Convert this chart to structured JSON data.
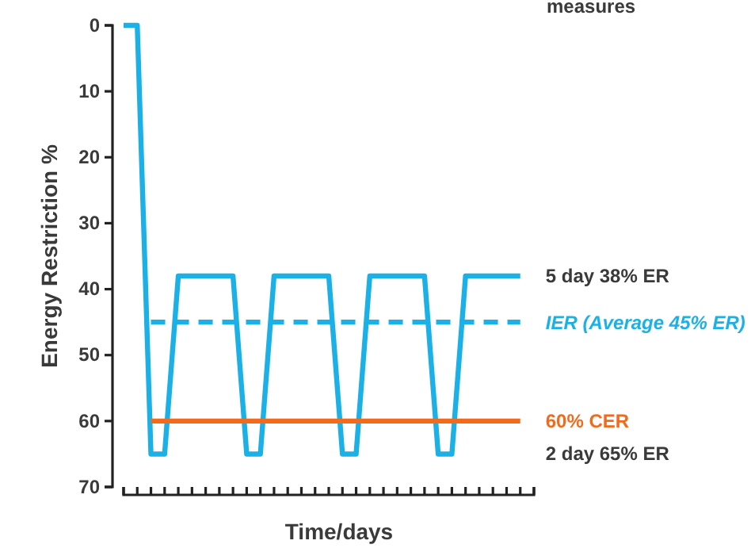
{
  "chart_data": {
    "type": "line",
    "title": "measures",
    "xlabel": "Time/days",
    "ylabel": "Energy Restriction %",
    "categories": [
      null,
      null,
      null,
      null,
      null,
      null,
      null,
      null,
      null,
      null,
      null,
      null,
      null,
      null,
      null,
      null,
      null,
      null,
      null,
      null,
      null,
      null,
      null,
      null,
      null,
      null,
      null,
      null,
      null,
      null,
      null
    ],
    "ylim": [
      70,
      0
    ],
    "yticks": [
      0,
      10,
      20,
      30,
      40,
      50,
      60,
      70
    ],
    "tick_labels": "y",
    "grid": false,
    "legend": false,
    "series": [
      {
        "color": "#1bb1e7",
        "line_style": "solid",
        "values": [
          0,
          0,
          65,
          65,
          38,
          38,
          38,
          38,
          38,
          65,
          65,
          38,
          38,
          38,
          38,
          38,
          65,
          65,
          38,
          38,
          38,
          38,
          38,
          65,
          65,
          38,
          38,
          38,
          38,
          38,
          null
        ]
      },
      {
        "name": "IER (Average 45% ER)",
        "color": "#1bb1e7",
        "line_style": "dashed",
        "values": [
          null,
          null,
          45,
          45,
          45,
          45,
          45,
          45,
          45,
          45,
          45,
          45,
          45,
          45,
          45,
          45,
          45,
          45,
          45,
          45,
          45,
          45,
          45,
          45,
          45,
          45,
          45,
          45,
          45,
          45,
          null
        ]
      },
      {
        "name": "60% CER",
        "color": "#f26a1b",
        "line_style": "solid",
        "values": [
          null,
          null,
          60,
          60,
          60,
          60,
          60,
          60,
          60,
          60,
          60,
          60,
          60,
          60,
          60,
          60,
          60,
          60,
          60,
          60,
          60,
          60,
          60,
          60,
          60,
          60,
          60,
          60,
          60,
          60,
          null
        ]
      }
    ],
    "annotations": [
      "5 day 38% ER",
      "2 day 65% ER"
    ]
  }
}
